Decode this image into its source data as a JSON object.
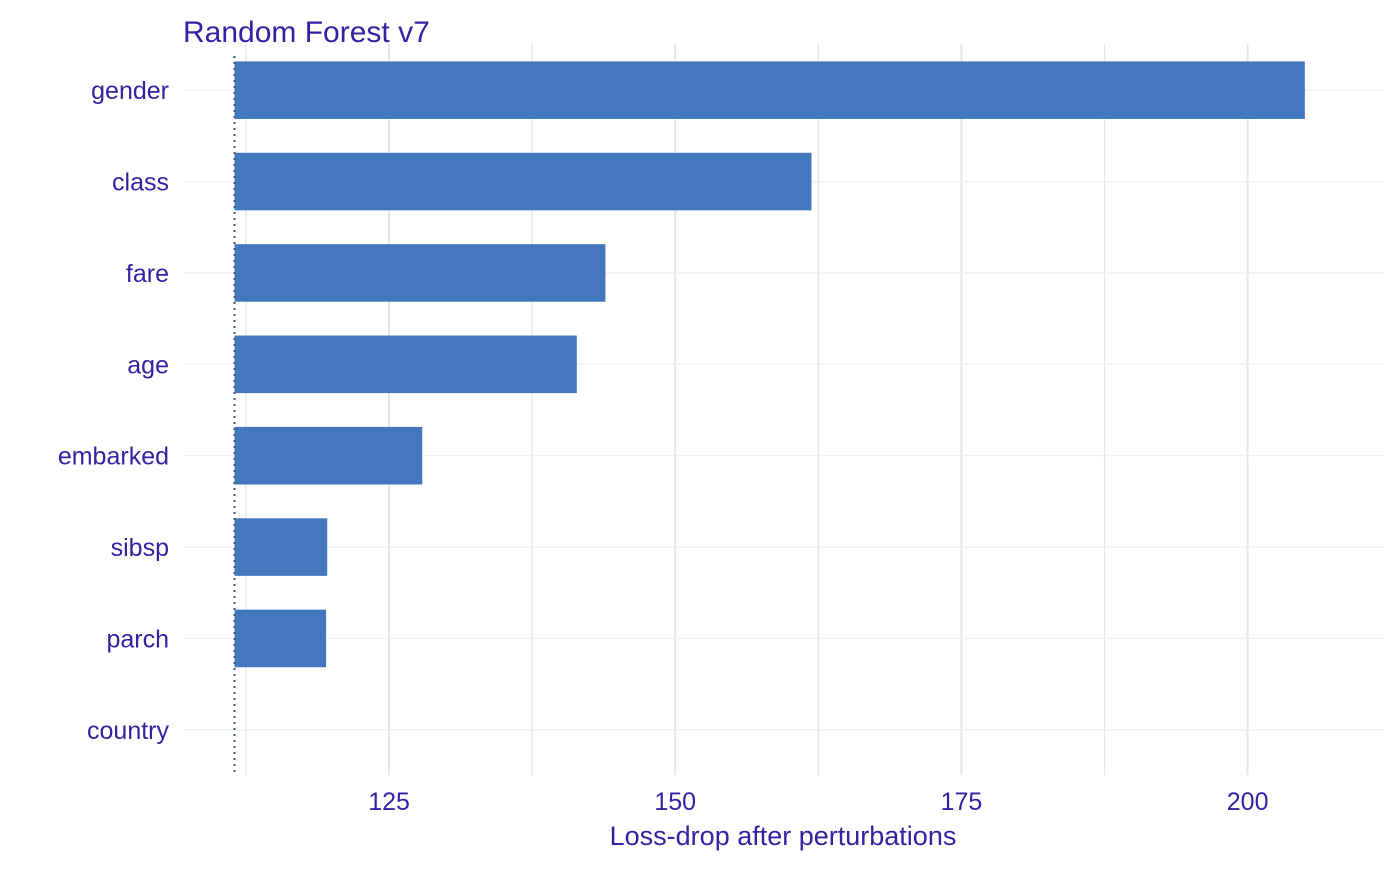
{
  "chart_data": {
    "type": "bar",
    "orientation": "horizontal",
    "title": "Random Forest v7",
    "xlabel": "Loss-drop after perturbations",
    "ylabel": "",
    "baseline": 111.5,
    "xlim": [
      107,
      212
    ],
    "x_ticks": [
      125,
      150,
      175,
      200
    ],
    "grid": true,
    "legend": "none",
    "categories": [
      "gender",
      "class",
      "fare",
      "age",
      "embarked",
      "sibsp",
      "parch",
      "country"
    ],
    "values": [
      205.0,
      161.9,
      143.9,
      141.4,
      127.9,
      119.6,
      119.5,
      111.5
    ]
  },
  "colors": {
    "bar": "#4378bf",
    "text": "#371ea3",
    "grid": "#e6e6e6",
    "grid_minor": "#f0f0f0",
    "baseline": "#455a64",
    "background": "#ffffff"
  }
}
